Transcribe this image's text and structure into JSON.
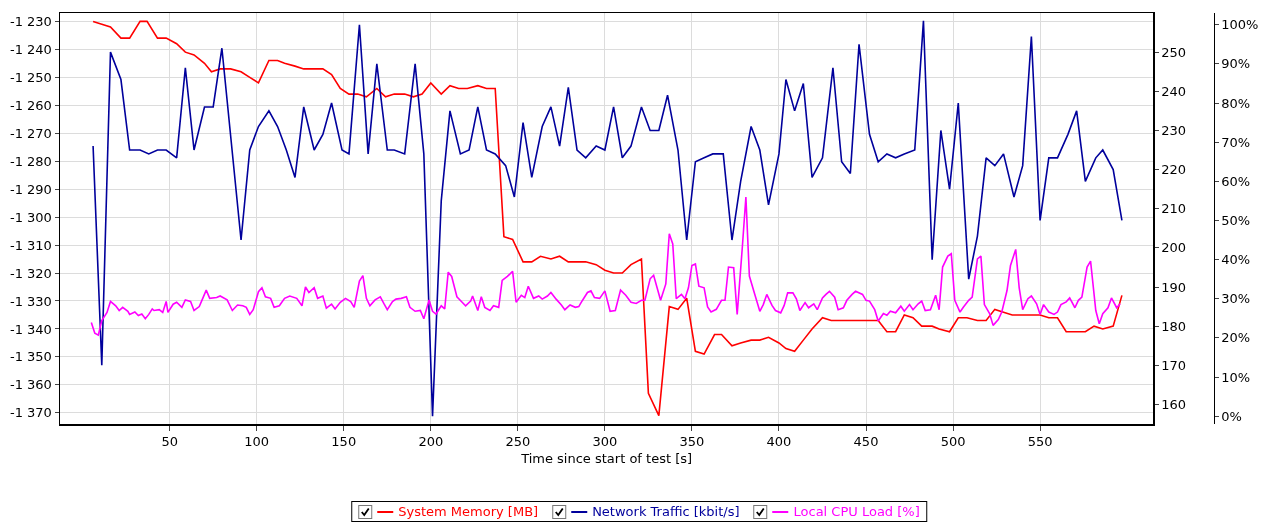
{
  "chart_data": {
    "type": "line",
    "xlabel": "Time since start of test [s]",
    "xlim": [
      -13,
      615
    ],
    "xticks": [
      50,
      100,
      150,
      200,
      250,
      300,
      350,
      400,
      450,
      500,
      550
    ],
    "ylim": [
      -1374,
      -1227
    ],
    "yticks": [
      {
        "value": -1370,
        "label": "-1 370"
      },
      {
        "value": -1360,
        "label": "-1 360"
      },
      {
        "value": -1350,
        "label": "-1 350"
      },
      {
        "value": -1340,
        "label": "-1 340"
      },
      {
        "value": -1330,
        "label": "-1 330"
      },
      {
        "value": -1320,
        "label": "-1 320"
      },
      {
        "value": -1310,
        "label": "-1 310"
      },
      {
        "value": -1300,
        "label": "-1 300"
      },
      {
        "value": -1290,
        "label": "-1 290"
      },
      {
        "value": -1280,
        "label": "-1 280"
      },
      {
        "value": -1270,
        "label": "-1 270"
      },
      {
        "value": -1260,
        "label": "-1 260"
      },
      {
        "value": -1250,
        "label": "-1 250"
      },
      {
        "value": -1240,
        "label": "-1 240"
      },
      {
        "value": -1230,
        "label": "-1 230"
      }
    ],
    "y2lim": [
      155,
      260
    ],
    "y2ticks": [
      160,
      170,
      180,
      190,
      200,
      210,
      220,
      230,
      240,
      250
    ],
    "y3lim": [
      -2,
      103
    ],
    "y3ticks": [
      {
        "value": 0,
        "label": "0%"
      },
      {
        "value": 10,
        "label": "10%"
      },
      {
        "value": 20,
        "label": "20%"
      },
      {
        "value": 30,
        "label": "30%"
      },
      {
        "value": 40,
        "label": "40%"
      },
      {
        "value": 50,
        "label": "50%"
      },
      {
        "value": 60,
        "label": "60%"
      },
      {
        "value": 70,
        "label": "70%"
      },
      {
        "value": 80,
        "label": "80%"
      },
      {
        "value": 90,
        "label": "90%"
      },
      {
        "value": 100,
        "label": "100%"
      }
    ],
    "grid": true,
    "legend": "bottom",
    "marker": "none",
    "line_style": "solid",
    "series": [
      {
        "name": "System Memory [MB]",
        "color": "#ff0000",
        "axis": "y",
        "x": [
          6,
          11,
          16,
          22,
          27,
          33,
          37,
          43,
          48,
          54,
          59,
          64,
          70,
          74,
          79,
          85,
          91,
          96,
          101,
          107,
          112,
          116,
          122,
          127,
          133,
          138,
          143,
          148,
          153,
          158,
          163,
          169,
          174,
          179,
          185,
          190,
          195,
          200,
          206,
          211,
          216,
          221,
          227,
          232,
          237,
          242,
          247,
          253,
          258,
          263,
          269,
          274,
          279,
          284,
          289,
          295,
          300,
          305,
          310,
          315,
          321,
          325,
          331,
          337,
          342,
          347,
          352,
          357,
          363,
          367,
          373,
          378,
          384,
          389,
          394,
          400,
          404,
          409,
          414,
          419,
          425,
          430,
          435,
          452,
          457,
          462,
          467,
          472,
          477,
          482,
          488,
          492,
          498,
          503,
          508,
          514,
          519,
          524,
          529,
          534,
          539,
          545,
          550,
          555,
          560,
          565,
          571,
          576,
          581,
          586,
          592,
          597
        ],
        "values": [
          -1230,
          -1231,
          -1232,
          -1236,
          -1236,
          -1230,
          -1230,
          -1236,
          -1236,
          -1238,
          -1241,
          -1242,
          -1245,
          -1248,
          -1247,
          -1247,
          -1248,
          -1250,
          -1252,
          -1244,
          -1244,
          -1245,
          -1246,
          -1247,
          -1247,
          -1247,
          -1249,
          -1254,
          -1256,
          -1256,
          -1257,
          -1254,
          -1257,
          -1256,
          -1256,
          -1257,
          -1256,
          -1252,
          -1256,
          -1253,
          -1254,
          -1254,
          -1253,
          -1254,
          -1254,
          -1307,
          -1308,
          -1316,
          -1316,
          -1314,
          -1315,
          -1314,
          -1316,
          -1316,
          -1316,
          -1317,
          -1319,
          -1320,
          -1320,
          -1317,
          -1315,
          -1363,
          -1371,
          -1332,
          -1333,
          -1329,
          -1348,
          -1349,
          -1342,
          -1342,
          -1346,
          -1345,
          -1344,
          -1344,
          -1343,
          -1345,
          -1347,
          -1348,
          -1344,
          -1340,
          -1336,
          -1337,
          -1337,
          -1337,
          -1337,
          -1341,
          -1341,
          -1335,
          -1336,
          -1339,
          -1339,
          -1340,
          -1341,
          -1336,
          -1336,
          -1337,
          -1337,
          -1333,
          -1334,
          -1335,
          -1335,
          -1335,
          -1335,
          -1336,
          -1336,
          -1341,
          -1341,
          -1341,
          -1339,
          -1340,
          -1339,
          -1328
        ]
      },
      {
        "name": "Network Traffic [kbit/s]",
        "color": "#00009c",
        "axis": "y2",
        "x": [
          6,
          11,
          16,
          22,
          27,
          33,
          38,
          43,
          48,
          54,
          59,
          64,
          70,
          75,
          80,
          91,
          96,
          101,
          107,
          112,
          117,
          122,
          127,
          133,
          138,
          143,
          149,
          153,
          159,
          164,
          169,
          175,
          179,
          185,
          191,
          196,
          201,
          206,
          211,
          217,
          222,
          227,
          232,
          237,
          243,
          248,
          253,
          258,
          264,
          269,
          274,
          279,
          284,
          289,
          295,
          300,
          305,
          310,
          315,
          321,
          326,
          331,
          336,
          342,
          347,
          352,
          357,
          362,
          368,
          373,
          378,
          384,
          389,
          394,
          400,
          404,
          409,
          414,
          419,
          425,
          431,
          436,
          441,
          446,
          452,
          457,
          462,
          467,
          472,
          478,
          483,
          488,
          493,
          498,
          503,
          509,
          514,
          519,
          524,
          529,
          535,
          540,
          545,
          550,
          555,
          560,
          566,
          571,
          576,
          582,
          586,
          592,
          597
        ],
        "values": [
          226,
          170,
          250,
          243,
          225,
          225,
          224,
          225,
          225,
          223,
          246,
          225,
          236,
          236,
          251,
          202,
          225,
          231,
          235,
          231,
          225,
          218,
          236,
          225,
          229,
          237,
          225,
          224,
          257,
          224,
          247,
          225,
          225,
          224,
          247,
          224,
          157,
          212,
          235,
          224,
          225,
          236,
          225,
          224,
          221,
          213,
          232,
          218,
          231,
          236,
          226,
          241,
          225,
          223,
          226,
          225,
          236,
          223,
          226,
          236,
          230,
          230,
          239,
          225,
          202,
          222,
          223,
          224,
          224,
          202,
          217,
          231,
          225,
          211,
          224,
          243,
          235,
          242,
          218,
          223,
          246,
          222,
          219,
          252,
          229,
          222,
          224,
          223,
          224,
          225,
          258,
          197,
          230,
          215,
          237,
          192,
          203,
          223,
          221,
          224,
          213,
          221,
          254,
          207,
          223,
          223,
          229,
          235,
          217,
          223,
          225,
          220,
          207
        ]
      },
      {
        "name": "Local CPU Load [%]",
        "color": "#ff00ff",
        "axis": "y3",
        "x": [
          5,
          7,
          9,
          11,
          14,
          16,
          19,
          21,
          23,
          26,
          27,
          30,
          32,
          34,
          36,
          38,
          40,
          41,
          44,
          46,
          48,
          49,
          52,
          54,
          57,
          59,
          62,
          64,
          67,
          69,
          71,
          73,
          77,
          79,
          83,
          86,
          89,
          92,
          94,
          96,
          98,
          101,
          103,
          105,
          108,
          110,
          113,
          116,
          119,
          123,
          126,
          128,
          130,
          133,
          135,
          138,
          140,
          143,
          145,
          148,
          151,
          154,
          156,
          159,
          161,
          163,
          165,
          168,
          171,
          173,
          175,
          178,
          180,
          183,
          186,
          188,
          191,
          194,
          196,
          199,
          201,
          203,
          206,
          208,
          210,
          212,
          215,
          218,
          220,
          223,
          224,
          227,
          229,
          231,
          234,
          236,
          239,
          241,
          244,
          247,
          249,
          252,
          254,
          256,
          259,
          262,
          264,
          267,
          269,
          272,
          275,
          277,
          280,
          283,
          285,
          287,
          290,
          292,
          294,
          297,
          300,
          303,
          306,
          309,
          312,
          315,
          318,
          321,
          323,
          326,
          328,
          330,
          332,
          335,
          337,
          339,
          341,
          344,
          346,
          348,
          350,
          352,
          354,
          357,
          359,
          361,
          364,
          367,
          369,
          371,
          374,
          376,
          379,
          381,
          383,
          386,
          389,
          391,
          393,
          396,
          398,
          401,
          403,
          405,
          408,
          410,
          412,
          415,
          417,
          420,
          422,
          425,
          427,
          429,
          432,
          434,
          437,
          439,
          442,
          444,
          448,
          450,
          452,
          455,
          457,
          460,
          462,
          464,
          467,
          470,
          472,
          475,
          477,
          480,
          482,
          484,
          487,
          490,
          492,
          494,
          497,
          499,
          501,
          504,
          506,
          509,
          511,
          514,
          516,
          518,
          521,
          523,
          526,
          528,
          531,
          533,
          536,
          538,
          540,
          543,
          545,
          548,
          550,
          552,
          555,
          558,
          560,
          562,
          565,
          567,
          570,
          572,
          574,
          577,
          579,
          582,
          584,
          586,
          589,
          591,
          594,
          596
        ],
        "values": [
          23.9,
          21.2,
          20.7,
          24.4,
          26.5,
          29.3,
          28.2,
          27,
          27.8,
          26.8,
          26,
          26.6,
          25.7,
          26.1,
          24.9,
          26,
          27.4,
          27,
          27.2,
          26.5,
          29.3,
          26.5,
          28.6,
          29.1,
          27.8,
          29.7,
          29.3,
          27,
          28,
          30.1,
          32.2,
          30.1,
          30.3,
          30.7,
          29.7,
          27,
          28.4,
          28.2,
          27.8,
          26,
          27.2,
          31.8,
          32.8,
          30.5,
          30.1,
          27.8,
          28.2,
          30.1,
          30.7,
          30.1,
          28.2,
          33,
          31.6,
          32.8,
          30.1,
          30.7,
          27.6,
          28.6,
          27.4,
          29.1,
          30.1,
          29.3,
          27.8,
          34.5,
          35.9,
          30.1,
          28.2,
          29.7,
          30.5,
          28.8,
          27.2,
          29.3,
          29.9,
          30.1,
          30.5,
          27.8,
          26.8,
          27,
          24.9,
          29.7,
          26.8,
          26.1,
          28.2,
          27.4,
          36.8,
          35.7,
          30.5,
          29.1,
          28.2,
          29.5,
          30.7,
          27,
          30.5,
          27.8,
          27,
          28.2,
          27.8,
          34.7,
          35.7,
          37,
          29.1,
          30.9,
          30.3,
          33.2,
          30.1,
          30.7,
          29.9,
          30.7,
          31.6,
          29.9,
          28.4,
          27.2,
          28.4,
          27.8,
          28,
          29.5,
          31.6,
          32,
          30.3,
          30.1,
          32,
          26.8,
          27,
          32.2,
          30.9,
          29.1,
          28.8,
          29.6,
          29.6,
          35.1,
          36,
          32.8,
          29.6,
          33.8,
          46.6,
          44,
          30,
          31.1,
          30,
          32.8,
          38.5,
          38.9,
          33.2,
          32.8,
          27.9,
          26.6,
          27.3,
          29.6,
          29.6,
          38.1,
          37.9,
          26,
          43.4,
          56,
          35.8,
          31.3,
          26.8,
          28.5,
          31.1,
          28.3,
          27,
          26.4,
          28.3,
          31.5,
          31.5,
          30,
          27,
          29,
          27.7,
          28.7,
          27.2,
          30.2,
          31.1,
          31.9,
          30.4,
          27.2,
          27.7,
          29.6,
          31.1,
          31.9,
          31.1,
          29.6,
          29.4,
          27.2,
          24.3,
          26.2,
          25.8,
          26.8,
          26.4,
          28.1,
          26.8,
          28.5,
          27.2,
          28.7,
          29.4,
          27,
          27.2,
          30.9,
          27.2,
          38.1,
          40.9,
          41.5,
          29.6,
          26.6,
          27.9,
          29.6,
          30.4,
          40.2,
          40.9,
          28.5,
          26.2,
          23.2,
          24.7,
          26.6,
          32.1,
          38.5,
          42.6,
          32.8,
          27.2,
          30,
          30.7,
          28.7,
          26,
          28.5,
          26.6,
          26,
          26.6,
          28.5,
          29.2,
          30.2,
          27.7,
          29.6,
          30.4,
          38.1,
          39.6,
          27,
          23.6,
          26.2,
          27.7,
          30.2,
          27.7,
          28.7
        ]
      }
    ]
  }
}
